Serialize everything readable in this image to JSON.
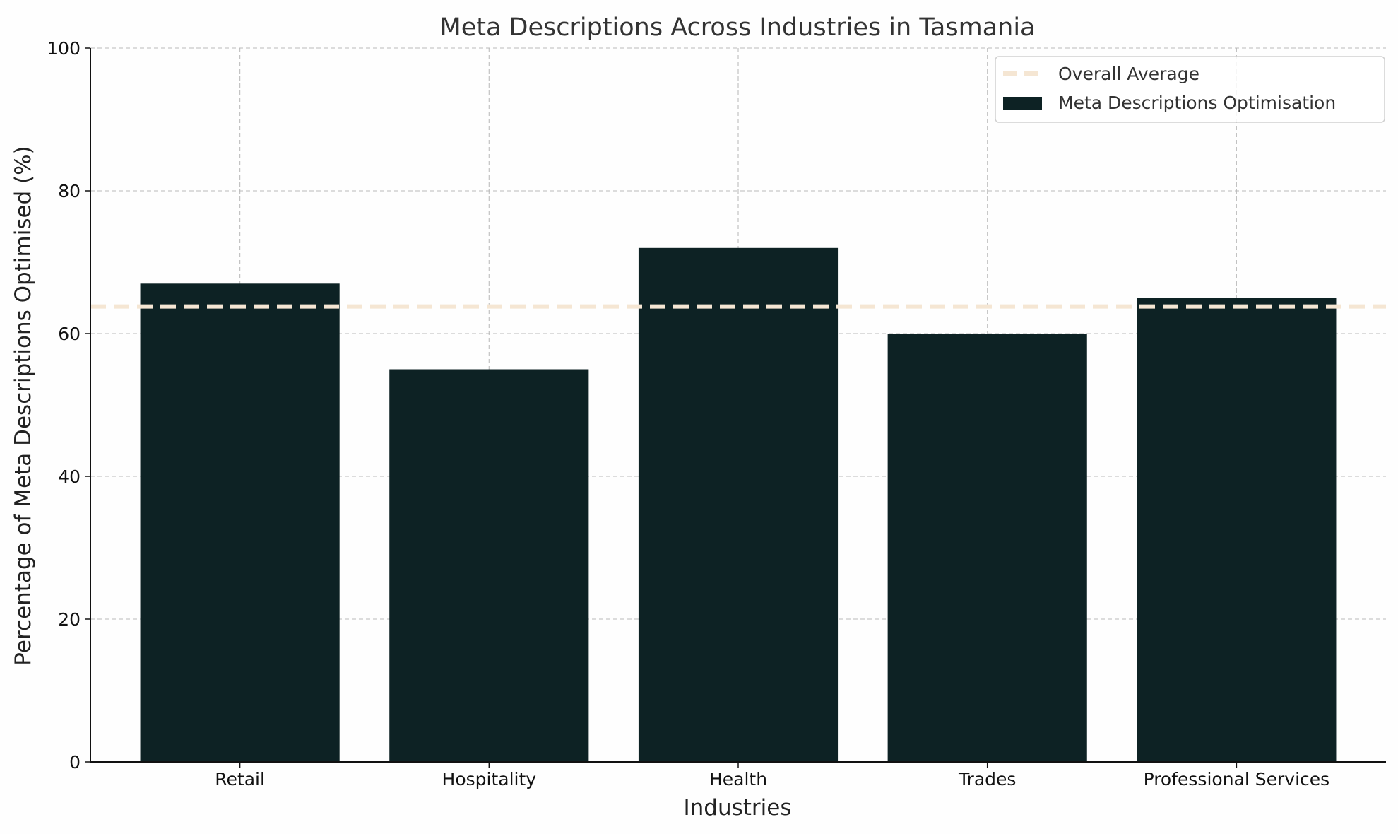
{
  "chart_data": {
    "type": "bar",
    "title": "Meta Descriptions Across Industries in Tasmania",
    "xlabel": "Industries",
    "ylabel": "Percentage of Meta Descriptions Optimised (%)",
    "categories": [
      "Retail",
      "Hospitality",
      "Health",
      "Trades",
      "Professional Services"
    ],
    "series": [
      {
        "name": "Meta Descriptions Optimisation",
        "values": [
          67,
          55,
          72,
          60,
          65
        ],
        "color": "#0d2224"
      }
    ],
    "reference_lines": [
      {
        "name": "Overall Average",
        "value": 63.8,
        "style": "dashed",
        "color": "#f5e6d3"
      }
    ],
    "ylim": [
      0,
      100
    ],
    "yticks": [
      0,
      20,
      40,
      60,
      80,
      100
    ],
    "grid": true,
    "legend_position": "top-right"
  }
}
